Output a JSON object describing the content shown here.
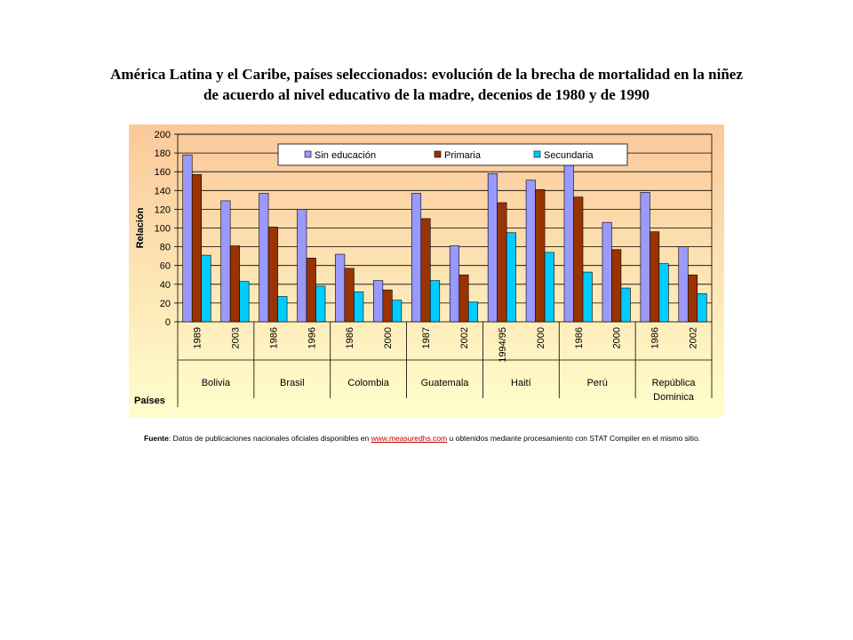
{
  "title": {
    "line1": "América Latina y el Caribe, países seleccionados: evolución de la brecha de mortalidad en la niñez",
    "line2": "de acuerdo al nivel educativo de la madre, decenios de 1980 y de 1990"
  },
  "source": {
    "label": "Fuente",
    "text_before": ": Datos de publicaciones nacionales oficiales disponibles en ",
    "link": "www.measuredhs.com",
    "text_after": " u obtenidos mediante procesamiento con STAT Compiler en el mismo sitio."
  },
  "colors": {
    "sin_educacion": "#9999ff",
    "primaria": "#993300",
    "secundaria": "#00ccff",
    "bg_top": "#fbc89a",
    "bg_bottom": "#ffffcc"
  },
  "chart_data": {
    "type": "bar",
    "ylabel": "Relación",
    "xlabel": "Países",
    "ylim": [
      0,
      200
    ],
    "yticks": [
      0,
      20,
      40,
      60,
      80,
      100,
      120,
      140,
      160,
      180,
      200
    ],
    "grid": true,
    "legend_position": "top",
    "categories": [
      "1989",
      "2003",
      "1986",
      "1996",
      "1986",
      "2000",
      "1987",
      "2002",
      "1994/95",
      "2000",
      "1986",
      "2000",
      "1986",
      "2002"
    ],
    "groups": [
      {
        "name": "Bolivia",
        "lines": [
          "Bolivia"
        ],
        "count": 2
      },
      {
        "name": "Brasil",
        "lines": [
          "Brasil"
        ],
        "count": 2
      },
      {
        "name": "Colombia",
        "lines": [
          "Colombia"
        ],
        "count": 2
      },
      {
        "name": "Guatemala",
        "lines": [
          "Guatemala"
        ],
        "count": 2
      },
      {
        "name": "Haití",
        "lines": [
          "Haití"
        ],
        "count": 2
      },
      {
        "name": "Perú",
        "lines": [
          "Perú"
        ],
        "count": 2
      },
      {
        "name": "República Dominica",
        "lines": [
          "República",
          "Dominica"
        ],
        "count": 2
      }
    ],
    "series": [
      {
        "name": "Sin educación",
        "values": [
          178,
          129,
          137,
          120,
          72,
          44,
          137,
          81,
          158,
          151,
          168,
          106,
          138,
          80
        ]
      },
      {
        "name": "Primaria",
        "values": [
          157,
          81,
          101,
          68,
          57,
          34,
          110,
          50,
          127,
          141,
          133,
          77,
          96,
          50
        ]
      },
      {
        "name": "Secundaria",
        "values": [
          71,
          43,
          27,
          38,
          32,
          23,
          44,
          21,
          95,
          74,
          53,
          36,
          62,
          30
        ]
      }
    ]
  }
}
